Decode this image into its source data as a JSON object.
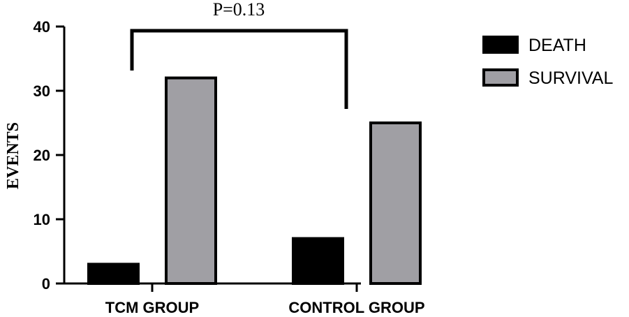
{
  "chart_data": {
    "type": "bar",
    "categories": [
      "TCM GROUP",
      "CONTROL GROUP"
    ],
    "series": [
      {
        "name": "DEATH",
        "values": [
          3,
          7
        ],
        "color": "#000000"
      },
      {
        "name": "SURVIVAL",
        "values": [
          32,
          25
        ],
        "color": "#a09fa4"
      }
    ],
    "ylabel": "EVENTS",
    "xlabel": "",
    "ylim": [
      0,
      40
    ],
    "yticks": [
      0,
      10,
      20,
      30,
      40
    ],
    "annotation": "P=0.13",
    "legend_position": "right",
    "grid": false
  }
}
